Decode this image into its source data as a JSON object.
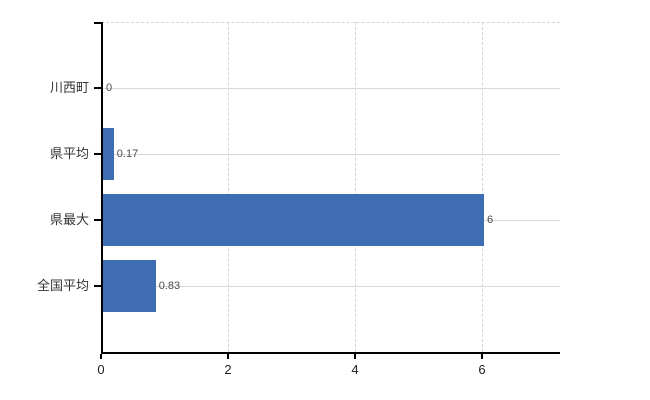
{
  "chart_data": {
    "type": "bar",
    "orientation": "horizontal",
    "title": "",
    "categories": [
      "川西町",
      "県平均",
      "県最大",
      "全国平均"
    ],
    "values": [
      0,
      0.17,
      6,
      0.83
    ],
    "value_labels": [
      "0",
      "0.17",
      "6",
      "0.83"
    ],
    "xticks": [
      "0",
      "2",
      "4",
      "6"
    ],
    "xtick_values": [
      0,
      2,
      4,
      6
    ],
    "xlim": [
      0,
      7.2
    ],
    "grid": true,
    "legend": false,
    "colors": {
      "bar": "#3f6db3",
      "row_gridline": "#d6dacf",
      "dashed_gridline": "#d4d4d4",
      "axis": "#000000",
      "category_label": "#333333",
      "value_label": "#4a4a4a",
      "background": "#ffffff"
    }
  }
}
